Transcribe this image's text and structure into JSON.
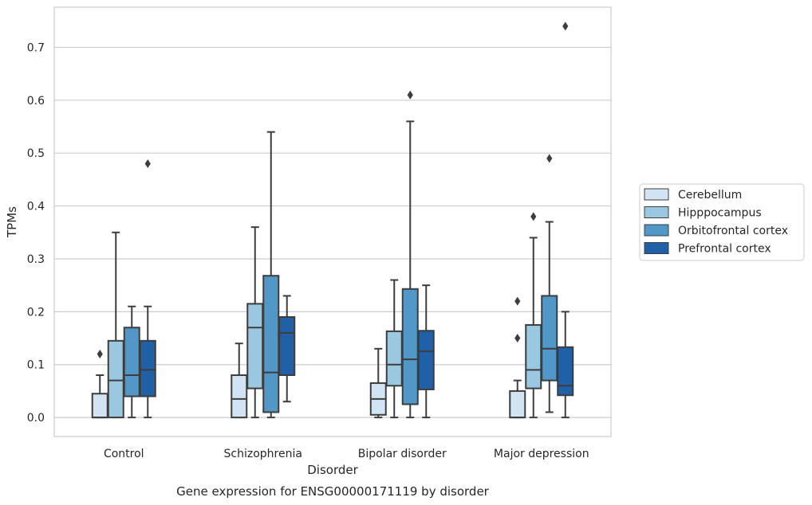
{
  "chart_data": {
    "type": "boxplot",
    "caption": "Gene expression for ENSG00000171119 by disorder",
    "xlabel": "Disorder",
    "ylabel": "TPMs",
    "ylim": [
      -0.036,
      0.776
    ],
    "yticks": [
      0.0,
      0.1,
      0.2,
      0.3,
      0.4,
      0.5,
      0.6,
      0.7
    ],
    "ytick_labels": [
      "0.0",
      "0.1",
      "0.2",
      "0.3",
      "0.4",
      "0.5",
      "0.6",
      "0.7"
    ],
    "grid": "horizontal",
    "legend_position": "right",
    "categories": [
      "Control",
      "Schizophrenia",
      "Bipolar disorder",
      "Major depression"
    ],
    "series": [
      {
        "name": "Cerebellum",
        "color": "#d2e3f3",
        "boxes": [
          {
            "whislo": 0.0,
            "q1": 0.0,
            "med": 0.0,
            "q3": 0.045,
            "whishi": 0.08,
            "fliers": [
              0.12
            ]
          },
          {
            "whislo": 0.0,
            "q1": 0.0,
            "med": 0.035,
            "q3": 0.08,
            "whishi": 0.14,
            "fliers": []
          },
          {
            "whislo": 0.0,
            "q1": 0.005,
            "med": 0.035,
            "q3": 0.065,
            "whishi": 0.13,
            "fliers": []
          },
          {
            "whislo": 0.0,
            "q1": 0.0,
            "med": 0.0,
            "q3": 0.05,
            "whishi": 0.07,
            "fliers": [
              0.15,
              0.22
            ]
          }
        ]
      },
      {
        "name": "Hipppocampus",
        "color": "#9ac8e0",
        "boxes": [
          {
            "whislo": 0.0,
            "q1": 0.0,
            "med": 0.07,
            "q3": 0.145,
            "whishi": 0.35,
            "fliers": []
          },
          {
            "whislo": 0.0,
            "q1": 0.055,
            "med": 0.17,
            "q3": 0.215,
            "whishi": 0.36,
            "fliers": []
          },
          {
            "whislo": 0.0,
            "q1": 0.06,
            "med": 0.1,
            "q3": 0.163,
            "whishi": 0.26,
            "fliers": []
          },
          {
            "whislo": 0.0,
            "q1": 0.055,
            "med": 0.09,
            "q3": 0.175,
            "whishi": 0.34,
            "fliers": [
              0.38
            ]
          }
        ]
      },
      {
        "name": "Orbitofrontal cortex",
        "color": "#5198c9",
        "boxes": [
          {
            "whislo": 0.0,
            "q1": 0.04,
            "med": 0.08,
            "q3": 0.17,
            "whishi": 0.21,
            "fliers": []
          },
          {
            "whislo": 0.0,
            "q1": 0.01,
            "med": 0.085,
            "q3": 0.268,
            "whishi": 0.54,
            "fliers": []
          },
          {
            "whislo": 0.0,
            "q1": 0.025,
            "med": 0.11,
            "q3": 0.243,
            "whishi": 0.56,
            "fliers": [
              0.61
            ]
          },
          {
            "whislo": 0.01,
            "q1": 0.07,
            "med": 0.13,
            "q3": 0.23,
            "whishi": 0.37,
            "fliers": [
              0.49
            ]
          }
        ]
      },
      {
        "name": "Prefrontal cortex",
        "color": "#2060a6",
        "boxes": [
          {
            "whislo": 0.0,
            "q1": 0.04,
            "med": 0.09,
            "q3": 0.145,
            "whishi": 0.21,
            "fliers": [
              0.48
            ]
          },
          {
            "whislo": 0.03,
            "q1": 0.08,
            "med": 0.16,
            "q3": 0.19,
            "whishi": 0.23,
            "fliers": []
          },
          {
            "whislo": 0.0,
            "q1": 0.053,
            "med": 0.125,
            "q3": 0.164,
            "whishi": 0.25,
            "fliers": []
          },
          {
            "whislo": 0.0,
            "q1": 0.042,
            "med": 0.06,
            "q3": 0.133,
            "whishi": 0.2,
            "fliers": [
              0.74
            ]
          }
        ]
      }
    ]
  }
}
